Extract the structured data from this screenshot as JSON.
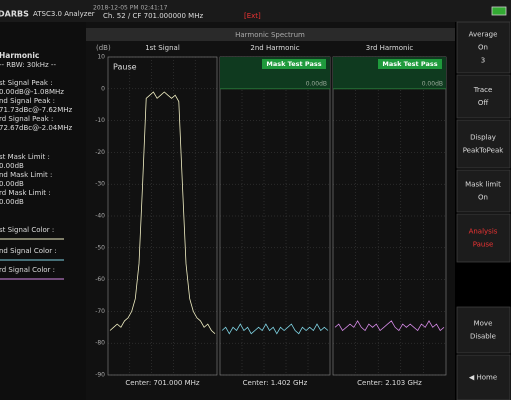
{
  "header": {
    "logo": "DARBS",
    "app": "ATSC3.0 Analyzer",
    "datetime": "2018-12-05 PM 02:41:17",
    "channel": "Ch. 52 / CF 701.000000 MHz",
    "ext": "[Ext]"
  },
  "left": {
    "title": "Harmonic",
    "rbw": "-- RBW: 30kHz --",
    "lines": [
      "st Signal Peak :",
      "0.00dB@-1.08MHz",
      "nd Signal Peak :",
      "71.73dBc@-7.62MHz",
      "rd Signal Peak :",
      "72.67dBc@-2.04MHz",
      "st Mask Limit :",
      "0.00dB",
      "nd Mask Limit :",
      "0.00dB",
      "rd Mask Limit :",
      "0.00dB"
    ],
    "colors": [
      "st Signal Color :",
      "nd Signal Color :",
      "rd Signal Color :"
    ]
  },
  "chart": {
    "title": "Harmonic Spectrum",
    "ylabel": "(dB)",
    "ylim": [
      -90,
      10
    ],
    "yticks": [
      10,
      0,
      -10,
      -20,
      -30,
      -40,
      -50,
      -60,
      -70,
      -80,
      -90
    ],
    "pause": "Pause",
    "panels": [
      {
        "title": "1st Signal",
        "center": "Center: 701.000 MHz",
        "color": "#f2f0c4",
        "values": [
          -76,
          -75,
          -74,
          -75,
          -73,
          -72,
          -70,
          -66,
          -55,
          -30,
          -3,
          -2,
          -1,
          -3,
          -2,
          -1,
          -2,
          -3,
          -2,
          -4,
          -30,
          -55,
          -66,
          -70,
          -72,
          -73,
          -75,
          -74,
          -76,
          -77
        ]
      },
      {
        "title": "2nd Harmonic",
        "center": "Center: 1.402 GHz",
        "color": "#7fd3e3",
        "badge": "Mask Test Pass",
        "level": 0,
        "level_label": "0.00dB",
        "values": [
          -76,
          -75,
          -77,
          -75,
          -76,
          -74,
          -76,
          -75,
          -77,
          -76,
          -75,
          -76,
          -74,
          -76,
          -75,
          -77,
          -75,
          -76,
          -75,
          -74,
          -76,
          -77,
          -75,
          -76,
          -75,
          -76,
          -74,
          -76,
          -75,
          -76
        ]
      },
      {
        "title": "3rd Harmonic",
        "center": "Center: 2.103 GHz",
        "color": "#d58ae6",
        "badge": "Mask Test Pass",
        "level": 0,
        "level_label": "0.00dB",
        "values": [
          -75,
          -74,
          -76,
          -75,
          -74,
          -75,
          -73,
          -75,
          -76,
          -74,
          -75,
          -74,
          -76,
          -75,
          -74,
          -73,
          -75,
          -76,
          -74,
          -75,
          -74,
          -75,
          -76,
          -74,
          -75,
          -73,
          -75,
          -74,
          -76,
          -75
        ]
      }
    ]
  },
  "buttons": [
    {
      "label": "Average",
      "value": "On",
      "extra": "3"
    },
    {
      "label": "Trace",
      "value": "Off"
    },
    {
      "label": "Display",
      "value": "PeakToPeak"
    },
    {
      "label": "Mask limit",
      "value": "On"
    },
    {
      "label": "Analysis",
      "value": "Pause",
      "active": true
    },
    {
      "label": "Move",
      "value": "Disable"
    },
    {
      "label": "◀ Home"
    }
  ]
}
